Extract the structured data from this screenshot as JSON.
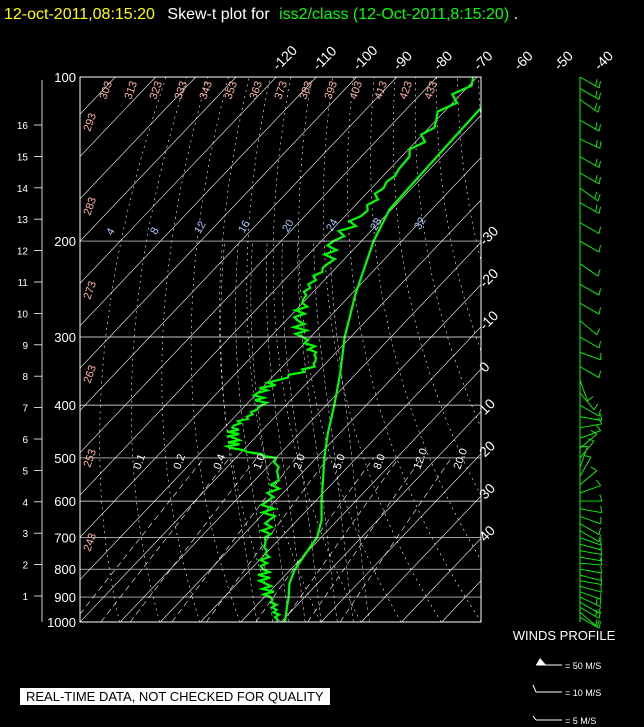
{
  "header": {
    "date_time": "12-oct-2011,08:15:20",
    "plot_prefix": "Skew-t plot for",
    "dataset": "iss2/class (12-Oct-2011,8:15:20)",
    "period": ".",
    "colors": {
      "date_time": "#ffff00",
      "plot_prefix": "#ffffff",
      "dataset": "#00ff00"
    }
  },
  "banner": {
    "text": "REAL-TIME DATA, NOT CHECKED FOR QUALITY"
  },
  "chart_data": {
    "type": "skew-t",
    "pressure_axis": {
      "ticks": [
        100,
        200,
        300,
        400,
        500,
        600,
        700,
        800,
        900,
        1000
      ],
      "log_scale": true
    },
    "height_axis": {
      "ticks": [
        1,
        2,
        3,
        4,
        5,
        6,
        7,
        8,
        9,
        10,
        11,
        12,
        13,
        14,
        15,
        16
      ]
    },
    "isotherm_labels_top": [
      -120,
      -110,
      -100,
      -90,
      -80,
      -70,
      -60,
      -50,
      -40
    ],
    "isotherm_labels_right": [
      -30,
      -20,
      -10,
      0,
      10,
      20,
      30,
      40
    ],
    "dry_adiabat_labels": [
      "303",
      "313",
      "323",
      "333",
      "343",
      "353",
      "363",
      "373",
      "383",
      "393",
      "403",
      "413",
      "423",
      "433",
      "293",
      "283",
      "273",
      "263",
      "253",
      "243"
    ],
    "moist_adiabat_labels": [
      "4",
      "8",
      "12",
      "16",
      "20",
      "24",
      "28",
      "32"
    ],
    "mixing_ratio_labels": [
      "0.1",
      "0.2",
      "0.4",
      "1.0",
      "2.0",
      "5.0",
      "8.0",
      "12.0",
      "20.0"
    ],
    "temperature_profile": [
      [
        1000,
        11
      ],
      [
        950,
        8.5
      ],
      [
        900,
        6
      ],
      [
        850,
        3
      ],
      [
        800,
        1
      ],
      [
        750,
        0
      ],
      [
        700,
        -1
      ],
      [
        650,
        -4
      ],
      [
        600,
        -8.5
      ],
      [
        550,
        -13
      ],
      [
        500,
        -18
      ],
      [
        450,
        -23
      ],
      [
        400,
        -28
      ],
      [
        350,
        -34
      ],
      [
        300,
        -41.5
      ],
      [
        250,
        -49
      ],
      [
        200,
        -57
      ],
      [
        175,
        -60.5
      ],
      [
        150,
        -61
      ],
      [
        125,
        -61.5
      ],
      [
        100,
        -62
      ]
    ],
    "dewpoint_profile": [
      [
        1000,
        9
      ],
      [
        950,
        6
      ],
      [
        900,
        1.5
      ],
      [
        850,
        -3
      ],
      [
        800,
        -7
      ],
      [
        750,
        -10
      ],
      [
        700,
        -14
      ],
      [
        650,
        -17
      ],
      [
        600,
        -22
      ],
      [
        550,
        -24
      ],
      [
        500,
        -30
      ],
      [
        480,
        -43
      ],
      [
        460,
        -45
      ],
      [
        440,
        -48
      ],
      [
        420,
        -47
      ],
      [
        400,
        -46
      ],
      [
        380,
        -50
      ],
      [
        360,
        -48
      ],
      [
        340,
        -42
      ],
      [
        320,
        -45
      ],
      [
        300,
        -52
      ],
      [
        280,
        -57
      ],
      [
        260,
        -60
      ],
      [
        240,
        -63
      ],
      [
        220,
        -63
      ],
      [
        200,
        -67
      ],
      [
        180,
        -66
      ],
      [
        160,
        -67
      ],
      [
        140,
        -68
      ],
      [
        120,
        -70
      ],
      [
        100,
        -71
      ]
    ],
    "series_colors": {
      "temperature": "#00ff00",
      "dewpoint": "#00ff00",
      "grid": "#ffffff",
      "dry_adiabat": "#ffb6a0",
      "moist_adiabat": "#a8c8ff",
      "mixing_ratio": "#ffffff"
    },
    "winds": {
      "title": "WINDS PROFILE",
      "legend": [
        {
          "label": "= 50 M/S",
          "speed": 50
        },
        {
          "label": "= 10 M/S",
          "speed": 10
        },
        {
          "label": "= 5 M/S",
          "speed": 5
        }
      ],
      "barbs": [
        [
          980,
          8,
          300
        ],
        [
          960,
          7,
          310
        ],
        [
          940,
          8,
          300
        ],
        [
          920,
          7,
          300
        ],
        [
          900,
          8,
          295
        ],
        [
          880,
          7,
          290
        ],
        [
          860,
          6,
          285
        ],
        [
          840,
          7,
          280
        ],
        [
          820,
          7,
          285
        ],
        [
          800,
          6,
          280
        ],
        [
          780,
          6,
          275
        ],
        [
          760,
          6,
          280
        ],
        [
          740,
          7,
          280
        ],
        [
          720,
          6,
          285
        ],
        [
          700,
          6,
          290
        ],
        [
          680,
          5,
          300
        ],
        [
          660,
          6,
          300
        ],
        [
          640,
          5,
          290
        ],
        [
          620,
          4,
          280
        ],
        [
          600,
          3,
          270
        ],
        [
          580,
          3,
          250
        ],
        [
          560,
          3,
          230
        ],
        [
          540,
          4,
          210
        ],
        [
          520,
          5,
          200
        ],
        [
          500,
          6,
          220
        ],
        [
          480,
          6,
          230
        ],
        [
          460,
          5,
          250
        ],
        [
          440,
          4,
          260
        ],
        [
          420,
          5,
          280
        ],
        [
          400,
          6,
          300
        ],
        [
          380,
          4,
          320
        ],
        [
          360,
          3,
          340
        ],
        [
          340,
          3,
          300
        ],
        [
          320,
          4,
          290
        ],
        [
          300,
          5,
          300
        ],
        [
          280,
          5,
          310
        ],
        [
          260,
          5,
          300
        ],
        [
          240,
          6,
          300
        ],
        [
          220,
          6,
          305
        ],
        [
          200,
          6,
          300
        ],
        [
          185,
          7,
          300
        ],
        [
          170,
          8,
          300
        ],
        [
          160,
          8,
          305
        ],
        [
          150,
          9,
          300
        ],
        [
          140,
          9,
          300
        ],
        [
          130,
          9,
          295
        ],
        [
          120,
          10,
          300
        ],
        [
          110,
          9,
          305
        ],
        [
          105,
          10,
          300
        ],
        [
          100,
          9,
          300
        ]
      ]
    }
  }
}
